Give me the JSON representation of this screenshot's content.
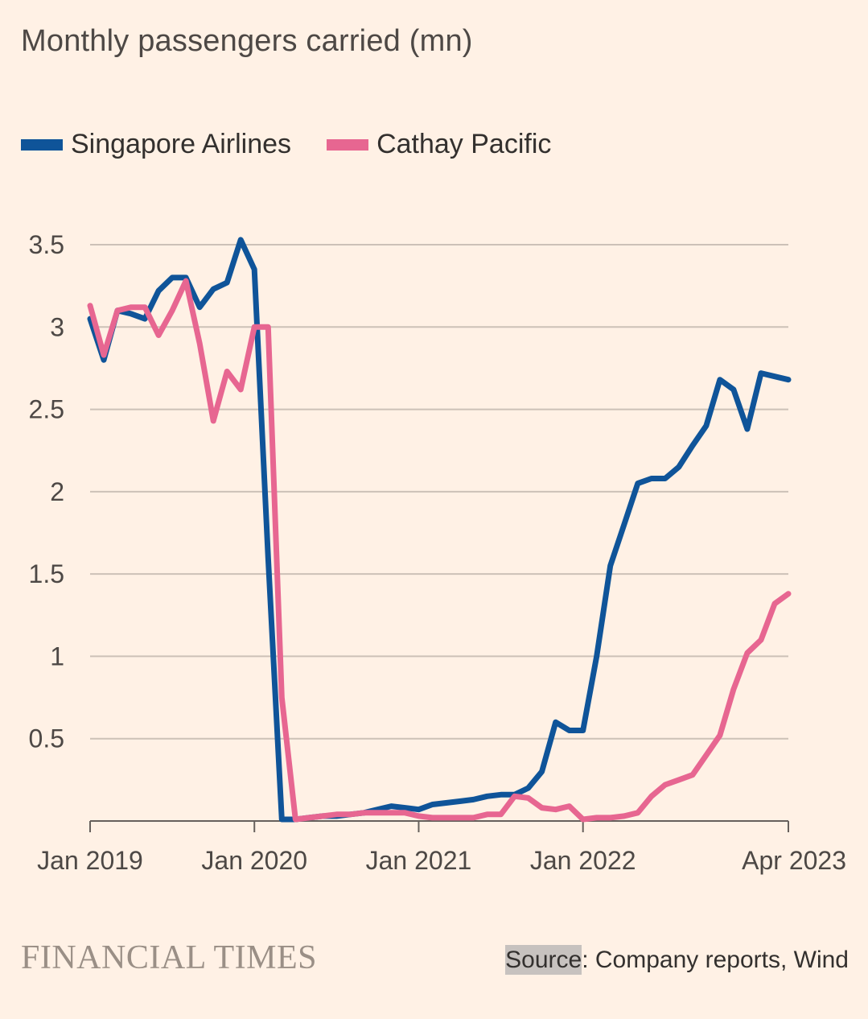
{
  "title": "Monthly passengers carried (mn)",
  "legend": [
    {
      "name": "Singapore Airlines",
      "color": "#0f5499"
    },
    {
      "name": "Cathay Pacific",
      "color": "#e76691"
    }
  ],
  "footer": {
    "brand": "FINANCIAL TIMES",
    "source_label": "Source",
    "source_text": ": Company reports, Wind"
  },
  "chart_data": {
    "type": "line",
    "title": "Monthly passengers carried (mn)",
    "x": [
      "Jan 2019",
      "Feb 2019",
      "Mar 2019",
      "Apr 2019",
      "May 2019",
      "Jun 2019",
      "Jul 2019",
      "Aug 2019",
      "Sep 2019",
      "Oct 2019",
      "Nov 2019",
      "Dec 2019",
      "Jan 2020",
      "Feb 2020",
      "Mar 2020",
      "Apr 2020",
      "May 2020",
      "Jun 2020",
      "Jul 2020",
      "Aug 2020",
      "Sep 2020",
      "Oct 2020",
      "Nov 2020",
      "Dec 2020",
      "Jan 2021",
      "Feb 2021",
      "Mar 2021",
      "Apr 2021",
      "May 2021",
      "Jun 2021",
      "Jul 2021",
      "Aug 2021",
      "Sep 2021",
      "Oct 2021",
      "Nov 2021",
      "Dec 2021",
      "Jan 2022",
      "Feb 2022",
      "Mar 2022",
      "Apr 2022",
      "May 2022",
      "Jun 2022",
      "Jul 2022",
      "Aug 2022",
      "Sep 2022",
      "Oct 2022",
      "Nov 2022",
      "Dec 2022",
      "Jan 2023",
      "Feb 2023",
      "Mar 2023",
      "Apr 2023"
    ],
    "x_ticks": [
      "Jan 2019",
      "Jan 2020",
      "Jan 2021",
      "Jan 2022",
      "Apr 2023"
    ],
    "y_ticks": [
      "0.5",
      "1",
      "1.5",
      "2",
      "2.5",
      "3",
      "3.5"
    ],
    "ylim": [
      0,
      3.5
    ],
    "grid": true,
    "legend_position": "top-left",
    "series": [
      {
        "name": "Singapore Airlines",
        "color": "#0f5499",
        "values": [
          3.05,
          2.8,
          3.1,
          3.08,
          3.05,
          3.22,
          3.3,
          3.3,
          3.12,
          3.23,
          3.27,
          3.53,
          3.35,
          1.6,
          0.01,
          0.01,
          0.02,
          0.03,
          0.03,
          0.04,
          0.05,
          0.07,
          0.09,
          0.08,
          0.07,
          0.1,
          0.11,
          0.12,
          0.13,
          0.15,
          0.16,
          0.16,
          0.2,
          0.3,
          0.6,
          0.55,
          0.55,
          1.0,
          1.55,
          1.8,
          2.05,
          2.08,
          2.08,
          2.15,
          2.28,
          2.4,
          2.68,
          2.62,
          2.38,
          2.72,
          2.7,
          2.68
        ]
      },
      {
        "name": "Cathay Pacific",
        "color": "#e76691",
        "values": [
          3.13,
          2.83,
          3.1,
          3.12,
          3.12,
          2.95,
          3.1,
          3.28,
          2.9,
          2.43,
          2.73,
          2.62,
          3.0,
          3.0,
          0.75,
          0.01,
          0.02,
          0.03,
          0.04,
          0.04,
          0.05,
          0.05,
          0.05,
          0.05,
          0.03,
          0.02,
          0.02,
          0.02,
          0.02,
          0.04,
          0.04,
          0.15,
          0.14,
          0.08,
          0.07,
          0.09,
          0.01,
          0.02,
          0.02,
          0.03,
          0.05,
          0.15,
          0.22,
          0.25,
          0.28,
          0.4,
          0.52,
          0.8,
          1.02,
          1.1,
          1.32,
          1.38
        ]
      }
    ]
  }
}
